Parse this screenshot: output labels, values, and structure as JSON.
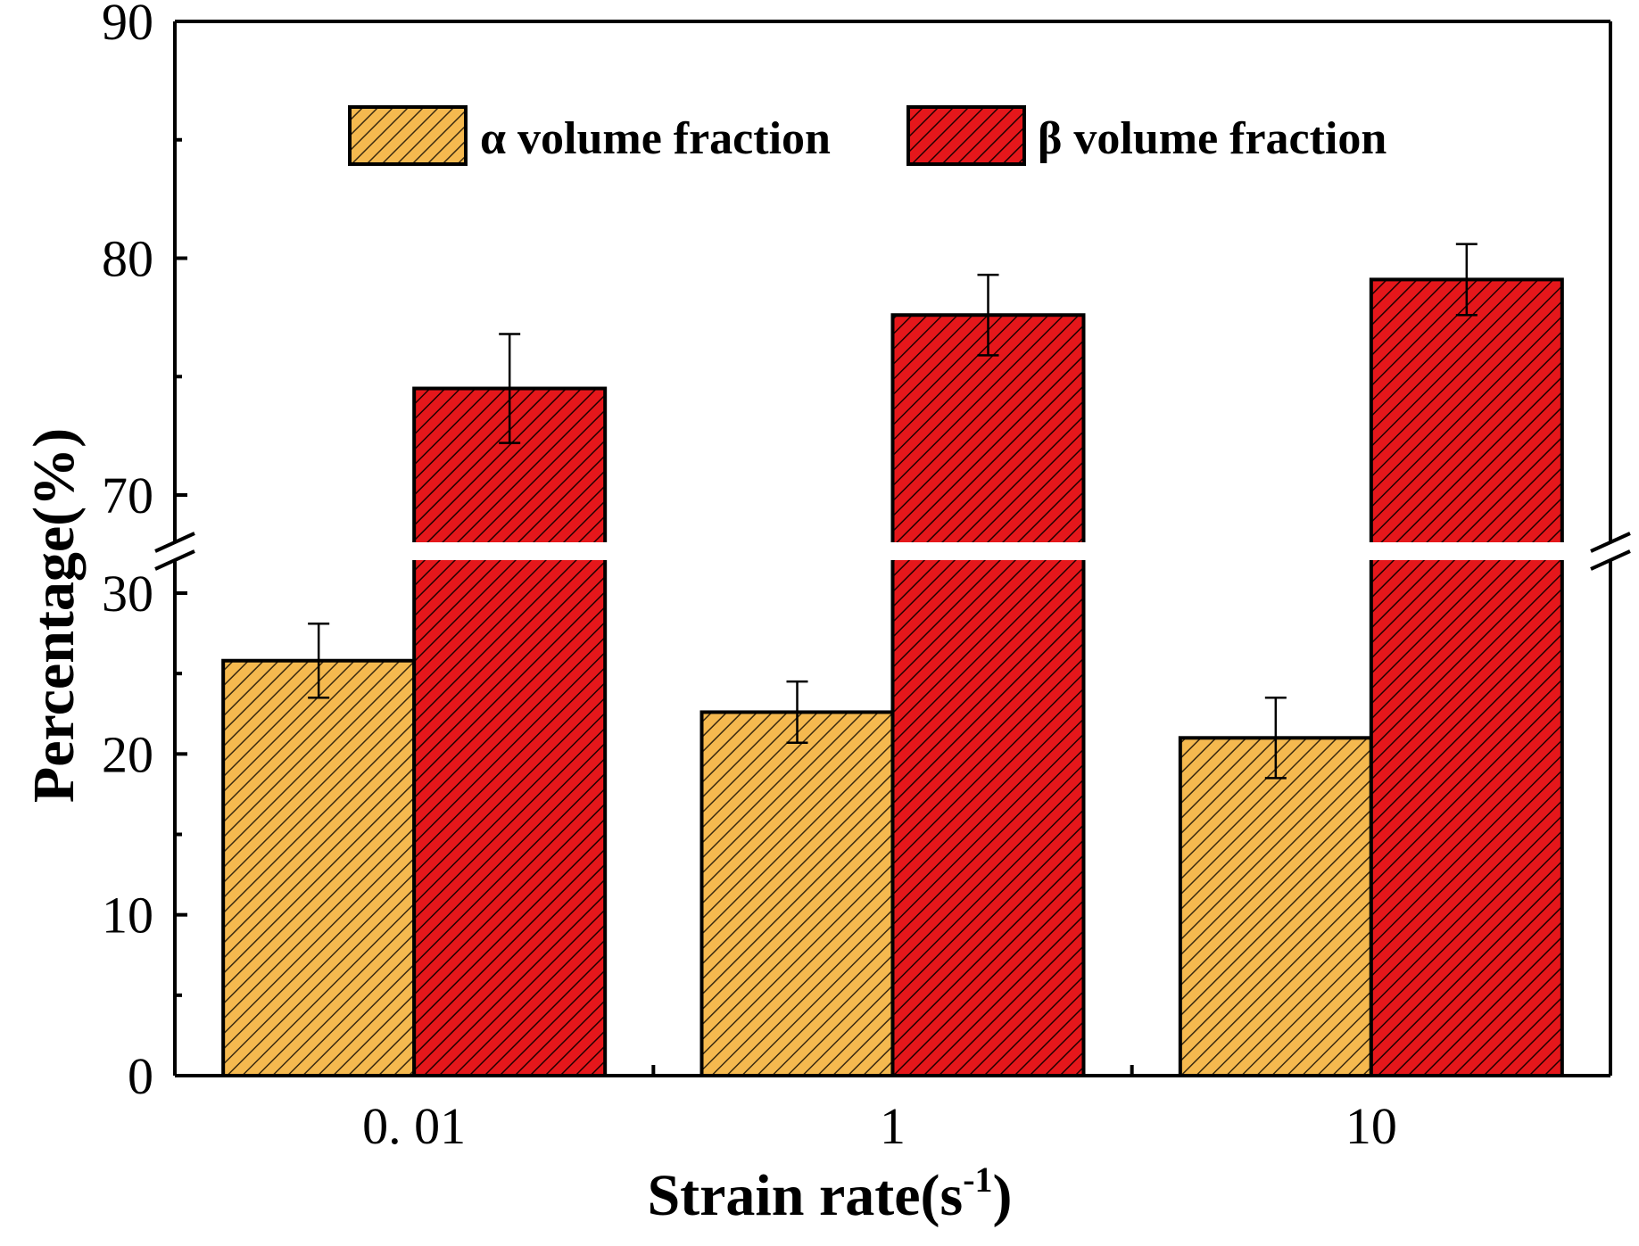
{
  "chart_data": {
    "type": "bar",
    "title": "",
    "xlabel": "Strain rate(s",
    "xlabel_superscript": "-1",
    "xlabel_suffix": ")",
    "ylabel": "Percentage(%)",
    "categories": [
      "0. 01",
      "1",
      "10"
    ],
    "series": [
      {
        "name": "α volume fraction",
        "values": [
          25.8,
          22.6,
          21.0
        ],
        "errors": [
          2.3,
          1.9,
          2.5
        ],
        "color": "#F5B94F",
        "hatch": "#3a2a10"
      },
      {
        "name": "β volume fraction",
        "values": [
          74.5,
          77.6,
          79.1
        ],
        "errors": [
          2.3,
          1.7,
          1.5
        ],
        "color": "#E5171B",
        "hatch": "#200000"
      }
    ],
    "y_axis_break": {
      "lower": [
        0,
        30
      ],
      "upper": [
        70,
        90
      ]
    },
    "yticks_lower": [
      "0",
      "10",
      "20",
      "30"
    ],
    "yticks_upper": [
      "70",
      "80",
      "90"
    ],
    "legend_position": "top-center"
  }
}
